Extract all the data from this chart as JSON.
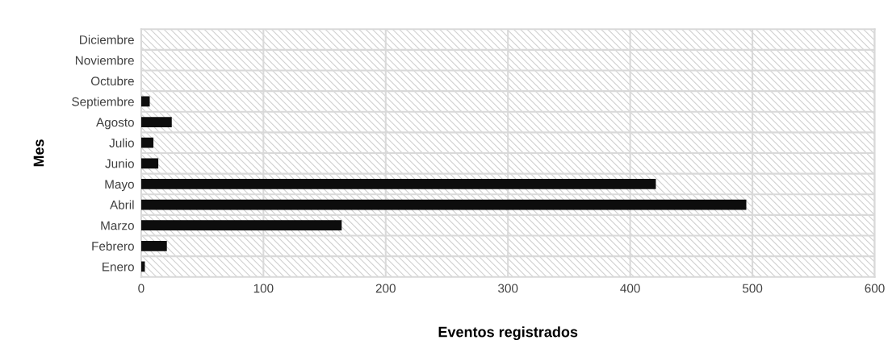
{
  "chart_data": {
    "type": "bar",
    "orientation": "horizontal",
    "xlabel": "Eventos registrados",
    "ylabel": "Mes",
    "categories": [
      "Diciembre",
      "Noviembre",
      "Octubre",
      "Septiembre",
      "Agosto",
      "Julio",
      "Junio",
      "Mayo",
      "Abril",
      "Marzo",
      "Febrero",
      "Enero"
    ],
    "values": [
      0,
      0,
      0,
      7,
      25,
      10,
      14,
      421,
      495,
      164,
      21,
      3
    ],
    "color": "#0d0d0d",
    "xlim": [
      0,
      600
    ],
    "xticks": [
      0,
      100,
      200,
      300,
      400,
      500,
      600
    ],
    "grid": true
  }
}
